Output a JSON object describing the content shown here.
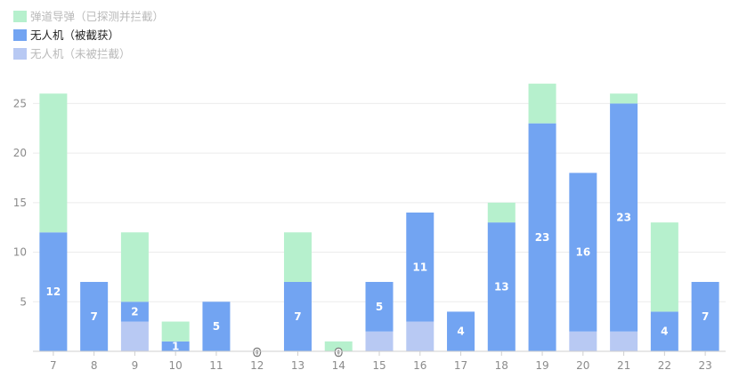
{
  "chart_data": {
    "type": "bar",
    "stacked": true,
    "categories": [
      "7",
      "8",
      "9",
      "10",
      "11",
      "12",
      "13",
      "14",
      "15",
      "16",
      "17",
      "18",
      "19",
      "20",
      "21",
      "22",
      "23"
    ],
    "series": [
      {
        "name": "无人机（未被拦截）",
        "color": "#b8c9f3",
        "values": [
          0,
          0,
          3,
          0,
          0,
          0,
          0,
          0,
          2,
          3,
          0,
          0,
          0,
          2,
          2,
          0,
          0
        ]
      },
      {
        "name": "无人机（被截获）",
        "color": "#72a4f2",
        "values": [
          12,
          7,
          2,
          1,
          5,
          0,
          7,
          0,
          5,
          11,
          4,
          13,
          23,
          16,
          23,
          4,
          7
        ]
      },
      {
        "name": "弹道导弹（已探测并拦截）",
        "color": "#b6f0cd",
        "values": [
          14,
          0,
          7,
          2,
          0,
          0,
          5,
          1,
          0,
          0,
          0,
          2,
          4,
          0,
          1,
          9,
          0
        ]
      }
    ],
    "data_labels": [
      "12",
      "7",
      "2",
      "1",
      "5",
      "0",
      "7",
      "0",
      "5",
      "11",
      "4",
      "13",
      "23",
      "16",
      "23",
      "4",
      "7"
    ],
    "yticks": [
      5,
      10,
      15,
      20,
      25
    ],
    "ylim": [
      0,
      27.5
    ],
    "grid": true,
    "legend": {
      "placement": "top-left",
      "items": [
        {
          "label": "弹道导弹（已探测并拦截）",
          "color": "#b6f0cd",
          "text_color": "#b9b9b9"
        },
        {
          "label": "无人机（被截获）",
          "color": "#72a4f2",
          "text_color": "#222222"
        },
        {
          "label": "无人机（未被拦截）",
          "color": "#b8c9f3",
          "text_color": "#b9b9b9"
        }
      ]
    },
    "title": "",
    "xlabel": "",
    "ylabel": ""
  }
}
